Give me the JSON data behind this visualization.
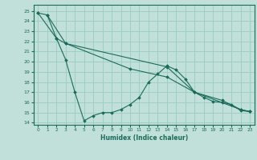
{
  "xlabel": "Humidex (Indice chaleur)",
  "bg_color": "#c2e0da",
  "grid_color": "#9ecec6",
  "line_color": "#1a6b5a",
  "xlim": [
    -0.5,
    23.5
  ],
  "ylim": [
    13.8,
    25.6
  ],
  "yticks": [
    14,
    15,
    16,
    17,
    18,
    19,
    20,
    21,
    22,
    23,
    24,
    25
  ],
  "xticks": [
    0,
    1,
    2,
    3,
    4,
    5,
    6,
    7,
    8,
    9,
    10,
    11,
    12,
    13,
    14,
    15,
    16,
    17,
    18,
    19,
    20,
    21,
    22,
    23
  ],
  "series1": [
    [
      0,
      24.8
    ],
    [
      1,
      24.6
    ],
    [
      2,
      22.3
    ],
    [
      3,
      20.2
    ],
    [
      4,
      17.0
    ],
    [
      5,
      14.2
    ],
    [
      6,
      14.7
    ],
    [
      7,
      15.0
    ],
    [
      8,
      15.0
    ],
    [
      9,
      15.3
    ],
    [
      10,
      15.8
    ],
    [
      11,
      16.5
    ],
    [
      12,
      18.0
    ],
    [
      13,
      18.8
    ],
    [
      14,
      19.6
    ],
    [
      15,
      19.2
    ],
    [
      16,
      18.3
    ],
    [
      17,
      17.0
    ],
    [
      18,
      16.5
    ],
    [
      19,
      16.1
    ],
    [
      20,
      16.0
    ],
    [
      21,
      15.8
    ],
    [
      22,
      15.2
    ],
    [
      23,
      15.1
    ]
  ],
  "series2": [
    [
      0,
      24.8
    ],
    [
      2,
      22.3
    ],
    [
      3,
      21.8
    ],
    [
      10,
      19.3
    ],
    [
      14,
      18.5
    ],
    [
      17,
      17.0
    ],
    [
      20,
      16.2
    ],
    [
      22,
      15.3
    ],
    [
      23,
      15.1
    ]
  ],
  "series3": [
    [
      1,
      24.6
    ],
    [
      3,
      21.8
    ],
    [
      14,
      19.5
    ],
    [
      17,
      17.0
    ],
    [
      22,
      15.3
    ],
    [
      23,
      15.1
    ]
  ]
}
